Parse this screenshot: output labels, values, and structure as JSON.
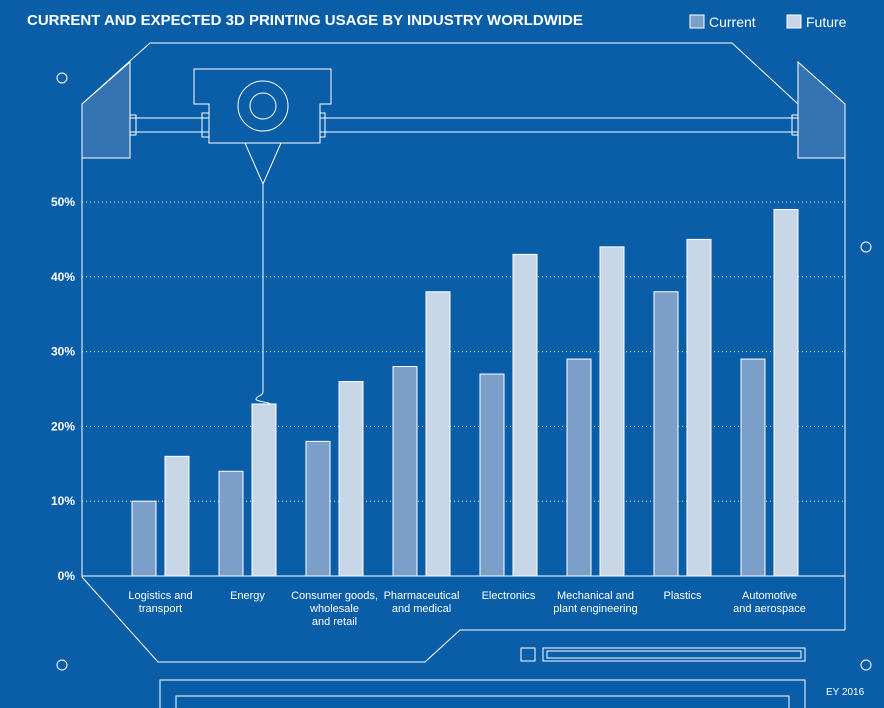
{
  "colors": {
    "background": "#0a5ea8",
    "current": "#7b9fc8",
    "future": "#c8d7e8",
    "line": "#ffffff",
    "panel": "#3573b3"
  },
  "credit": "EY 2016",
  "chart_data": {
    "type": "bar",
    "title": "CURRENT AND EXPECTED 3D PRINTING USAGE BY INDUSTRY WORLDWIDE",
    "categories": [
      [
        "Logistics and",
        "transport"
      ],
      [
        "Energy"
      ],
      [
        "Consumer goods,",
        "wholesale",
        "and retail"
      ],
      [
        "Pharmaceutical",
        "and medical"
      ],
      [
        "Electronics"
      ],
      [
        "Mechanical and",
        "plant engineering"
      ],
      [
        "Plastics"
      ],
      [
        "Automotive",
        "and aerospace"
      ]
    ],
    "series": [
      {
        "name": "Current",
        "values": [
          10,
          14,
          18,
          28,
          27,
          29,
          38,
          29
        ]
      },
      {
        "name": "Future",
        "values": [
          16,
          23,
          26,
          38,
          43,
          44,
          45,
          49
        ]
      }
    ],
    "y_ticks": [
      "0%",
      "10%",
      "20%",
      "30%",
      "40%",
      "50%"
    ],
    "ylim": [
      0,
      50
    ],
    "unit": "%",
    "grid": true,
    "legend": "top-right"
  }
}
